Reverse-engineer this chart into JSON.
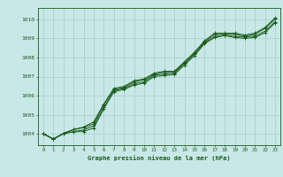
{
  "title": "Graphe pression niveau de la mer (hPa)",
  "xlabel_hours": [
    0,
    1,
    2,
    3,
    4,
    5,
    6,
    7,
    8,
    9,
    10,
    11,
    12,
    13,
    14,
    15,
    16,
    17,
    18,
    19,
    20,
    21,
    22,
    23
  ],
  "ylim": [
    1003.4,
    1010.6
  ],
  "yticks": [
    1004,
    1005,
    1006,
    1007,
    1008,
    1009,
    1010
  ],
  "bg_color": "#c8e8e8",
  "grid_color": "#aacaca",
  "line_color": "#1a5c1a",
  "series": [
    [
      1004.0,
      1003.72,
      1004.0,
      1004.1,
      1004.12,
      1004.3,
      1005.3,
      1006.2,
      1006.32,
      1006.55,
      1006.65,
      1007.0,
      1007.05,
      1007.1,
      1007.6,
      1008.1,
      1008.72,
      1009.05,
      1009.15,
      1009.05,
      1009.0,
      1009.05,
      1009.3,
      1009.82
    ],
    [
      1004.0,
      1003.72,
      1004.0,
      1004.12,
      1004.2,
      1004.42,
      1005.38,
      1006.25,
      1006.38,
      1006.62,
      1006.72,
      1007.08,
      1007.12,
      1007.18,
      1007.68,
      1008.18,
      1008.78,
      1009.1,
      1009.18,
      1009.1,
      1009.08,
      1009.12,
      1009.38,
      1009.88
    ],
    [
      1004.0,
      1003.72,
      1004.02,
      1004.22,
      1004.32,
      1004.52,
      1005.52,
      1006.32,
      1006.42,
      1006.72,
      1006.82,
      1007.12,
      1007.22,
      1007.22,
      1007.72,
      1008.22,
      1008.82,
      1009.22,
      1009.22,
      1009.22,
      1009.12,
      1009.22,
      1009.52,
      1010.02
    ],
    [
      1004.0,
      1003.72,
      1004.02,
      1004.22,
      1004.35,
      1004.62,
      1005.55,
      1006.38,
      1006.48,
      1006.78,
      1006.88,
      1007.18,
      1007.28,
      1007.28,
      1007.78,
      1008.28,
      1008.88,
      1009.28,
      1009.28,
      1009.28,
      1009.18,
      1009.28,
      1009.58,
      1010.08
    ]
  ]
}
